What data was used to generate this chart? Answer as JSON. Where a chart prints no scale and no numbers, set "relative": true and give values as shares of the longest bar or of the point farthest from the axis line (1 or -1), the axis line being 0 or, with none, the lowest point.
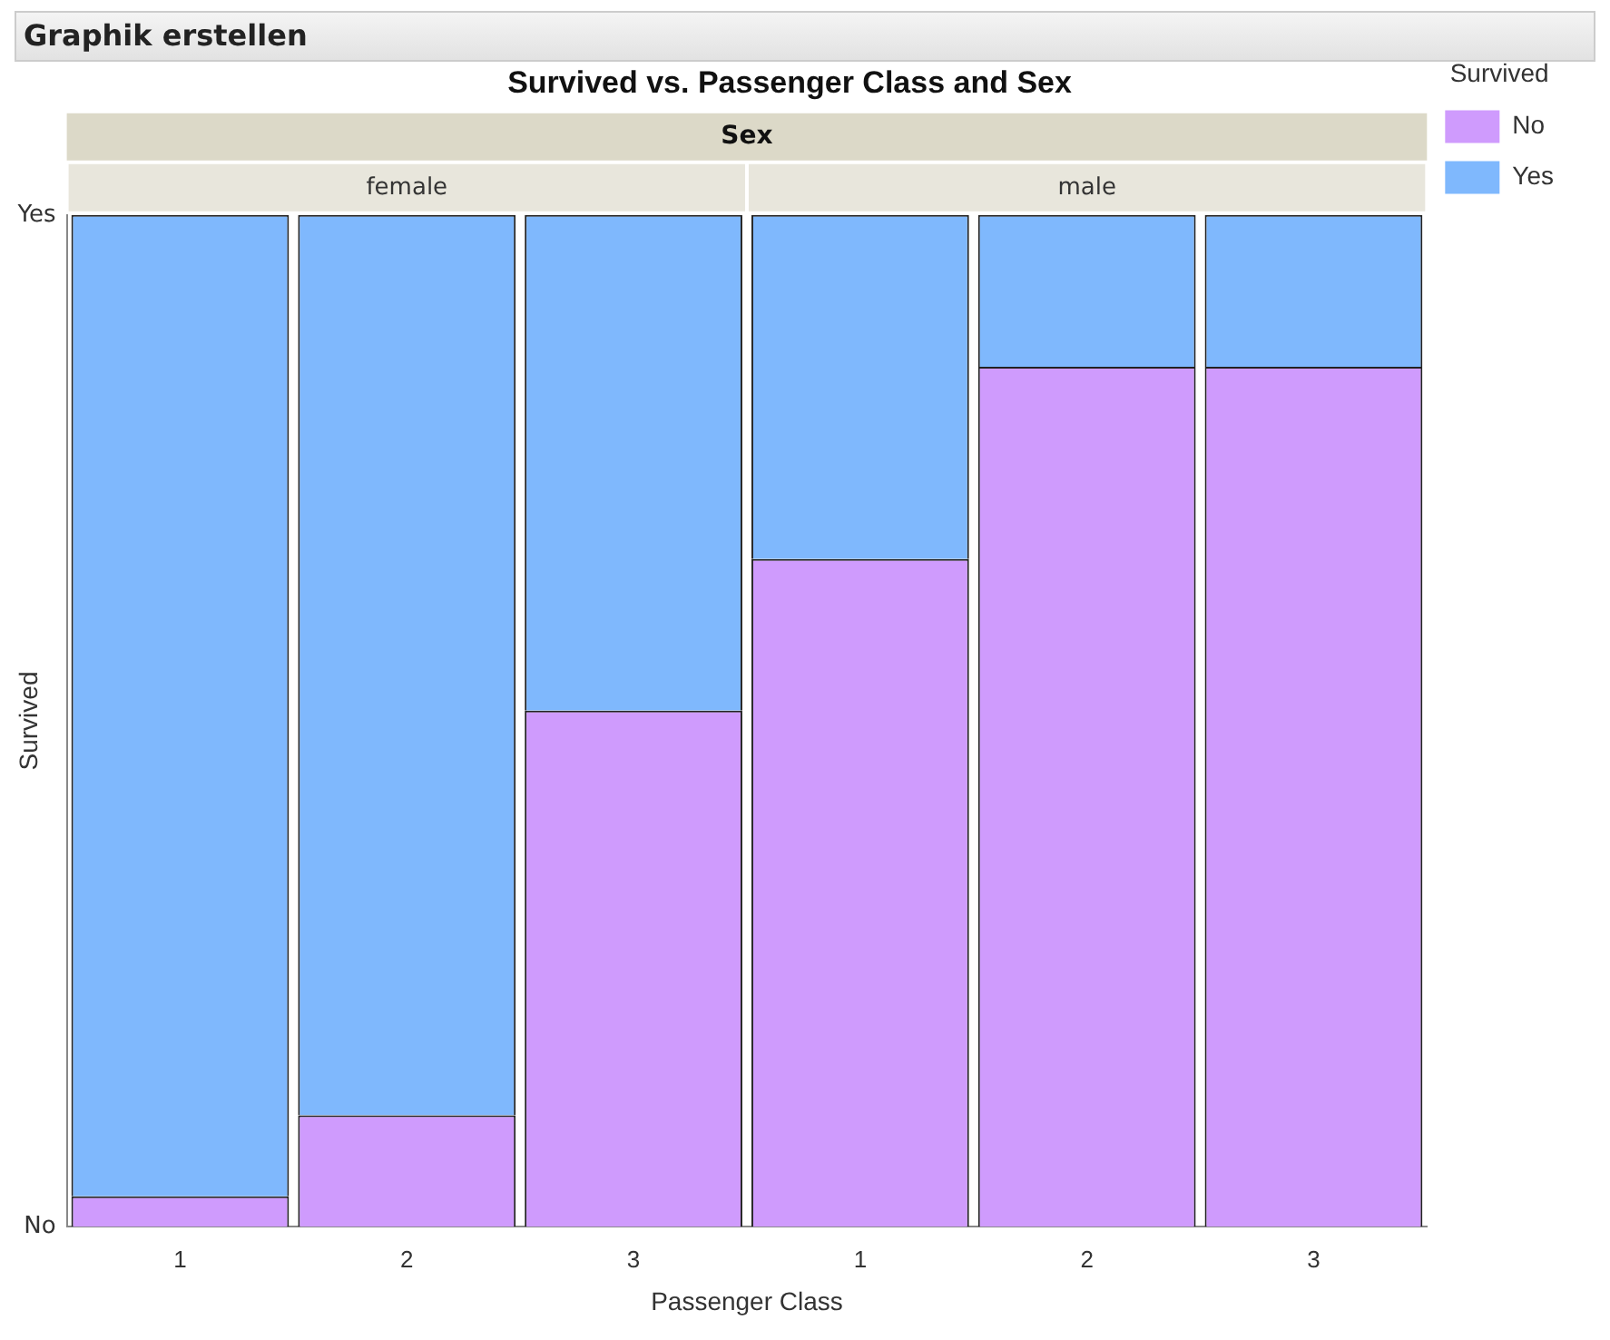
{
  "chart_data": {
    "type": "bar",
    "title": "Survived vs. Passenger Class and Sex",
    "xlabel": "Passenger Class",
    "ylabel": "Survived",
    "legend_title": "Survived",
    "annotations": [
      "Graphik erstellen",
      "Sex",
      "female",
      "male",
      "No",
      "Yes"
    ],
    "categories": [
      "1",
      "2",
      "3",
      "1",
      "2",
      "3"
    ],
    "stacked": true,
    "series": [
      {
        "name": "No",
        "color": "#cf9bfd",
        "values": [
          0.03,
          0.11,
          0.51,
          0.66,
          0.85,
          0.85
        ]
      },
      {
        "name": "Yes",
        "color": "#7fb8fd",
        "values": [
          0.97,
          0.89,
          0.49,
          0.34,
          0.15,
          0.15
        ]
      }
    ],
    "relative": true,
    "grid": false,
    "legend": "top right"
  }
}
